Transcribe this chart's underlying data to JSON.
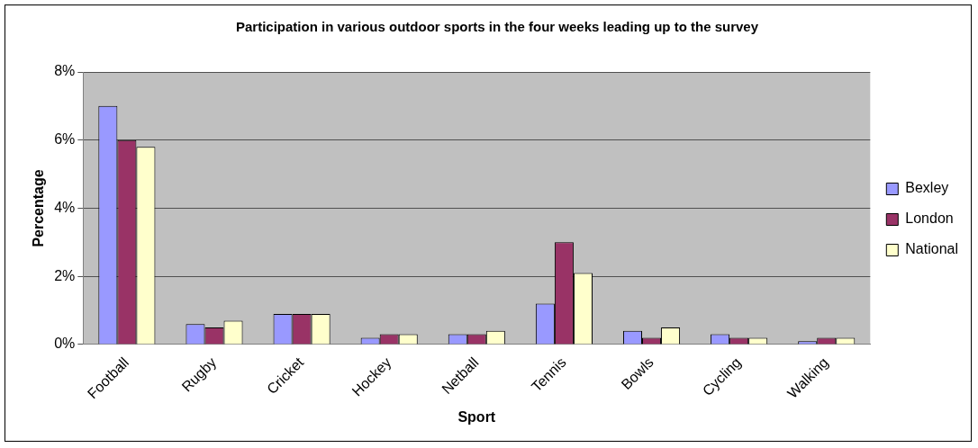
{
  "chart_data": {
    "type": "bar",
    "title": "Participation in various outdoor sports in the four weeks leading up to the survey",
    "xlabel": "Sport",
    "ylabel": "Percentage",
    "categories": [
      "Football",
      "Rugby",
      "Cricket",
      "Hockey",
      "Netball",
      "Tennis",
      "Bowls",
      "Cycling",
      "Walking"
    ],
    "series": [
      {
        "name": "Bexley",
        "color": "#9999ff",
        "values": [
          7.0,
          0.6,
          0.9,
          0.2,
          0.3,
          1.2,
          0.4,
          0.3,
          0.1
        ]
      },
      {
        "name": "London",
        "color": "#993366",
        "values": [
          6.0,
          0.5,
          0.9,
          0.3,
          0.3,
          3.0,
          0.2,
          0.2,
          0.2
        ]
      },
      {
        "name": "National",
        "color": "#ffffcc",
        "values": [
          5.8,
          0.7,
          0.9,
          0.3,
          0.4,
          2.1,
          0.5,
          0.2,
          0.2
        ]
      }
    ],
    "ylim": [
      0,
      8
    ],
    "yticks": [
      {
        "value": 0,
        "label": "0%"
      },
      {
        "value": 2,
        "label": "2%"
      },
      {
        "value": 4,
        "label": "4%"
      },
      {
        "value": 6,
        "label": "6%"
      },
      {
        "value": 8,
        "label": "8%"
      }
    ],
    "grid": "y",
    "legend": "right"
  }
}
